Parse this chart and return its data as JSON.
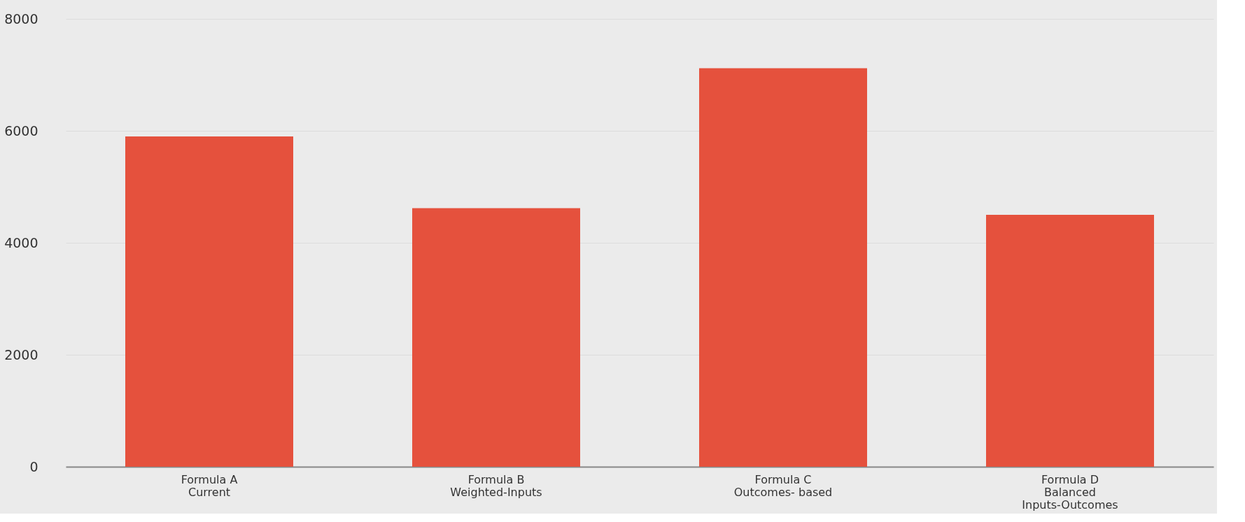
{
  "chart_data": {
    "type": "bar",
    "categories": [
      "Formula A\nCurrent",
      "Formula B\nWeighted-Inputs",
      "Formula C\nOutcomes- based",
      "Formula D\nBalanced\nInputs-Outcomes"
    ],
    "values": [
      5900,
      4620,
      7120,
      4500
    ],
    "color": "#e5513d",
    "ylim": [
      0,
      8000
    ],
    "yticks": [
      0,
      2000,
      4000,
      6000,
      8000
    ],
    "grid": "y"
  }
}
